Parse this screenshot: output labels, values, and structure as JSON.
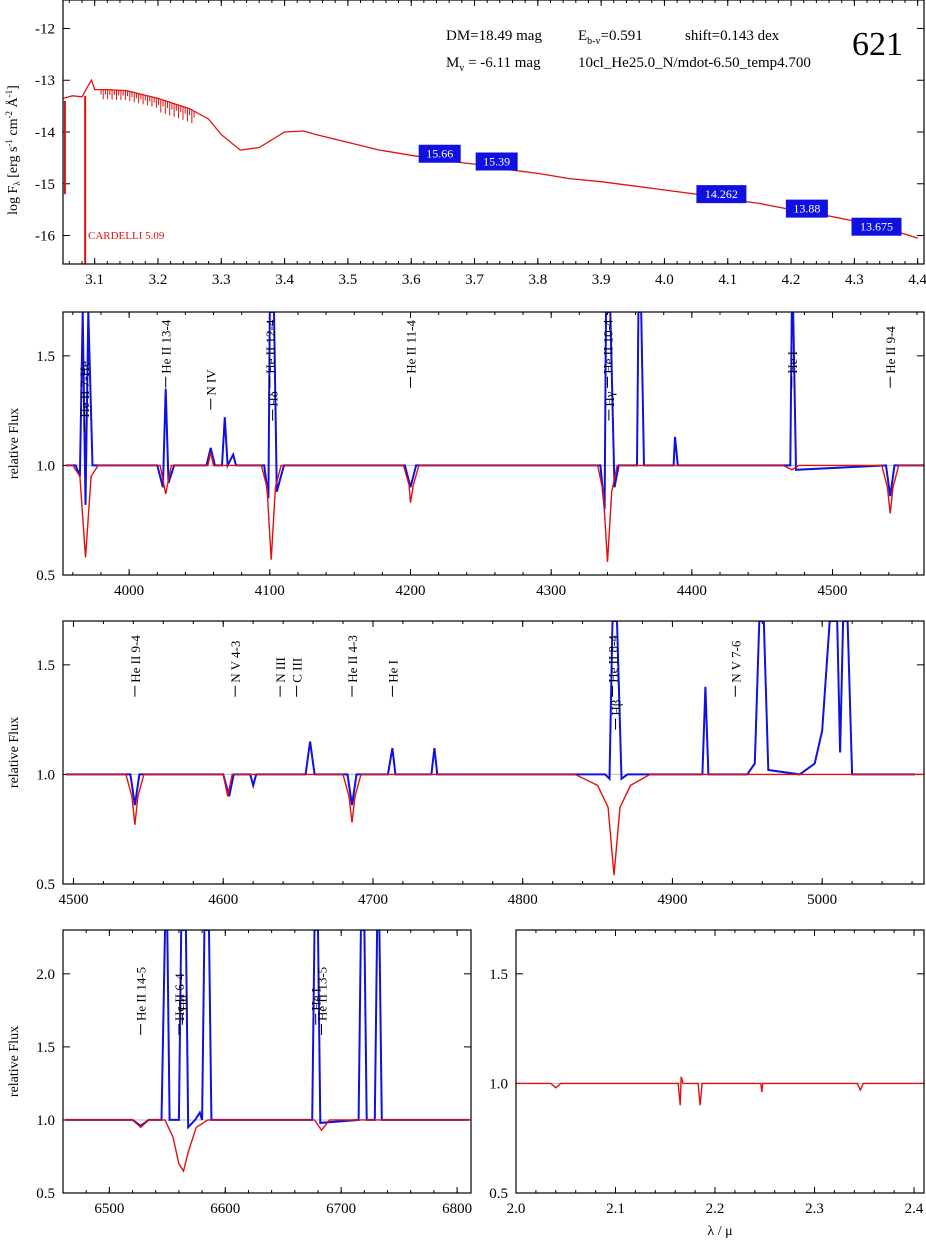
{
  "header": {
    "dm": "DM=18.49 mag",
    "ebv_prefix": "E",
    "ebv_sub": "b-v",
    "ebv_value": "=0.591",
    "shift": "shift=0.143 dex",
    "mv_prefix": "M",
    "mv_sub": "v",
    "mv_value": " =  -6.11 mag",
    "model": "10cl_He25.0_N/mdot-6.50_temp4.700",
    "id": "621",
    "cardelli": "CARDELLI 5.09"
  },
  "colors": {
    "observed": "#1010e0",
    "model": "#e01010",
    "badge": "#1010e0"
  },
  "chart_data": [
    {
      "type": "line",
      "panel": "sed",
      "ylabel": "log Fλ [erg s-1 cm-2 Å-1]",
      "xlim": [
        3.05,
        4.41
      ],
      "ylim": [
        -16.55,
        -11.45
      ],
      "xticks": [
        "3.1",
        "3.2",
        "3.3",
        "3.4",
        "3.5",
        "3.6",
        "3.7",
        "3.8",
        "3.9",
        "4.0",
        "4.1",
        "4.2",
        "4.3",
        "4.4"
      ],
      "yticks": [
        "-12",
        "-13",
        "-14",
        "-15",
        "-16"
      ],
      "series": [
        {
          "x": [
            3.05,
            3.065,
            3.08,
            3.09,
            3.095,
            3.1,
            3.12,
            3.15,
            3.2,
            3.25,
            3.28,
            3.3,
            3.33,
            3.36,
            3.4,
            3.43,
            3.45,
            3.5,
            3.55,
            3.6,
            3.65,
            3.7,
            3.75,
            3.8,
            3.85,
            3.9,
            3.95,
            4.0,
            4.05,
            4.1,
            4.15,
            4.2,
            4.25,
            4.3,
            4.35,
            4.4
          ],
          "y": [
            -13.35,
            -13.3,
            -13.32,
            -13.1,
            -13.0,
            -13.18,
            -13.18,
            -13.2,
            -13.35,
            -13.55,
            -13.75,
            -14.05,
            -14.35,
            -14.3,
            -14.0,
            -13.98,
            -14.05,
            -14.2,
            -14.35,
            -14.45,
            -14.55,
            -14.62,
            -14.72,
            -14.8,
            -14.9,
            -14.96,
            -15.04,
            -15.12,
            -15.2,
            -15.3,
            -15.38,
            -15.5,
            -15.6,
            -15.72,
            -15.86,
            -16.05
          ]
        }
      ],
      "magnitudes": [
        {
          "x": 3.645,
          "y": -14.42,
          "label": "15.66"
        },
        {
          "x": 3.735,
          "y": -14.57,
          "label": "15.39"
        },
        {
          "x": 4.09,
          "y": -15.2,
          "label": "14.262"
        },
        {
          "x": 4.225,
          "y": -15.48,
          "label": "13.88"
        },
        {
          "x": 4.335,
          "y": -15.83,
          "label": "13.675"
        }
      ]
    },
    {
      "type": "line",
      "panel": "blue",
      "ylabel": "relative Flux",
      "xlim": [
        3953,
        4565
      ],
      "ylim": [
        0.5,
        1.7
      ],
      "xticks": [
        "4000",
        "4100",
        "4200",
        "4300",
        "4400",
        "4500"
      ],
      "yticks": [
        "1.5",
        "1.0",
        "0.5"
      ],
      "lines": [
        {
          "x": 3968,
          "label": "He II 7-He",
          "y": 1.2
        },
        {
          "x": 4026,
          "label": "He II 13-4",
          "y": 1.4
        },
        {
          "x": 4058,
          "label": "N IV",
          "y": 1.3
        },
        {
          "x": 4100,
          "label": "He II 12-4",
          "y": 1.4
        },
        {
          "x": 4102,
          "label": "Hδ",
          "y": 1.25
        },
        {
          "x": 4200,
          "label": "He II 11-4",
          "y": 1.4
        },
        {
          "x": 4340,
          "label": "He II 10-4",
          "y": 1.4
        },
        {
          "x": 4341,
          "label": "Hγ",
          "y": 1.25
        },
        {
          "x": 4471,
          "label": "He I",
          "y": 1.4
        },
        {
          "x": 4541,
          "label": "He II 9-4",
          "y": 1.4
        }
      ],
      "observed": [
        [
          3955,
          1.0
        ],
        [
          3962,
          1.0
        ],
        [
          3965,
          0.95
        ],
        [
          3967,
          1.7
        ],
        [
          3969,
          0.82
        ],
        [
          3971,
          1.7
        ],
        [
          3974,
          1.0
        ],
        [
          4020,
          1.0
        ],
        [
          4024,
          0.9
        ],
        [
          4026,
          1.35
        ],
        [
          4028,
          0.92
        ],
        [
          4032,
          1.0
        ],
        [
          4055,
          1.0
        ],
        [
          4058,
          1.08
        ],
        [
          4061,
          1.0
        ],
        [
          4066,
          1.0
        ],
        [
          4068,
          1.22
        ],
        [
          4070,
          1.0
        ],
        [
          4074,
          1.05
        ],
        [
          4076,
          1.0
        ],
        [
          4096,
          1.0
        ],
        [
          4099,
          0.85
        ],
        [
          4100,
          1.7
        ],
        [
          4103,
          1.7
        ],
        [
          4105,
          0.88
        ],
        [
          4110,
          1.0
        ],
        [
          4196,
          1.0
        ],
        [
          4200,
          0.9
        ],
        [
          4204,
          1.0
        ],
        [
          4335,
          1.0
        ],
        [
          4338,
          0.8
        ],
        [
          4339,
          1.7
        ],
        [
          4342,
          1.7
        ],
        [
          4345,
          0.9
        ],
        [
          4348,
          1.0
        ],
        [
          4361,
          1.0
        ],
        [
          4362,
          1.7
        ],
        [
          4364,
          1.7
        ],
        [
          4366,
          1.0
        ],
        [
          4387,
          1.0
        ],
        [
          4388,
          1.13
        ],
        [
          4390,
          1.0
        ],
        [
          4460,
          1.0
        ],
        [
          4470,
          1.0
        ],
        [
          4471,
          1.7
        ],
        [
          4472,
          1.7
        ],
        [
          4474,
          0.98
        ],
        [
          4538,
          1.0
        ],
        [
          4541,
          0.86
        ],
        [
          4544,
          1.0
        ],
        [
          4565,
          1.0
        ]
      ],
      "model": [
        [
          3955,
          1.0
        ],
        [
          3960,
          1.0
        ],
        [
          3965,
          0.95
        ],
        [
          3969,
          0.58
        ],
        [
          3973,
          0.95
        ],
        [
          3978,
          1.0
        ],
        [
          4022,
          1.0
        ],
        [
          4026,
          0.87
        ],
        [
          4030,
          1.0
        ],
        [
          4056,
          1.0
        ],
        [
          4058,
          1.06
        ],
        [
          4060,
          1.0
        ],
        [
          4094,
          1.0
        ],
        [
          4098,
          0.9
        ],
        [
          4101,
          0.57
        ],
        [
          4104,
          0.9
        ],
        [
          4108,
          1.0
        ],
        [
          4195,
          1.0
        ],
        [
          4199,
          0.91
        ],
        [
          4200,
          0.83
        ],
        [
          4202,
          0.91
        ],
        [
          4206,
          1.0
        ],
        [
          4333,
          1.0
        ],
        [
          4337,
          0.88
        ],
        [
          4340,
          0.56
        ],
        [
          4343,
          0.88
        ],
        [
          4347,
          1.0
        ],
        [
          4465,
          1.0
        ],
        [
          4471,
          0.98
        ],
        [
          4476,
          1.0
        ],
        [
          4535,
          1.0
        ],
        [
          4539,
          0.9
        ],
        [
          4541,
          0.78
        ],
        [
          4543,
          0.9
        ],
        [
          4547,
          1.0
        ],
        [
          4565,
          1.0
        ]
      ]
    },
    {
      "type": "line",
      "panel": "green",
      "ylabel": "relative Flux",
      "xlim": [
        4493,
        5068
      ],
      "ylim": [
        0.5,
        1.7
      ],
      "xticks": [
        "4500",
        "4600",
        "4700",
        "4800",
        "4900",
        "5000"
      ],
      "yticks": [
        "1.5",
        "1.0",
        "0.5"
      ],
      "lines": [
        {
          "x": 4541,
          "label": "He II 9-4",
          "y": 1.4
        },
        {
          "x": 4608,
          "label": "N V 4-3",
          "y": 1.4
        },
        {
          "x": 4638,
          "label": "N III",
          "y": 1.4
        },
        {
          "x": 4649,
          "label": "C III",
          "y": 1.4
        },
        {
          "x": 4686,
          "label": "He II 4-3",
          "y": 1.4
        },
        {
          "x": 4713,
          "label": "He I",
          "y": 1.4
        },
        {
          "x": 4860,
          "label": "He II 8-4",
          "y": 1.4
        },
        {
          "x": 4862,
          "label": "Hβ",
          "y": 1.25
        },
        {
          "x": 4942,
          "label": "N V 7-6",
          "y": 1.4
        }
      ],
      "observed": [
        [
          4495,
          1.0
        ],
        [
          4538,
          1.0
        ],
        [
          4541,
          0.86
        ],
        [
          4544,
          1.0
        ],
        [
          4600,
          1.0
        ],
        [
          4604,
          0.9
        ],
        [
          4607,
          1.0
        ],
        [
          4618,
          1.0
        ],
        [
          4620,
          0.95
        ],
        [
          4622,
          1.0
        ],
        [
          4655,
          1.0
        ],
        [
          4658,
          1.15
        ],
        [
          4661,
          1.0
        ],
        [
          4683,
          1.0
        ],
        [
          4686,
          0.86
        ],
        [
          4689,
          1.0
        ],
        [
          4710,
          1.0
        ],
        [
          4713,
          1.12
        ],
        [
          4715,
          1.0
        ],
        [
          4739,
          1.0
        ],
        [
          4741,
          1.12
        ],
        [
          4743,
          1.0
        ],
        [
          4855,
          1.0
        ],
        [
          4858,
          0.98
        ],
        [
          4860,
          1.7
        ],
        [
          4863,
          1.7
        ],
        [
          4866,
          0.98
        ],
        [
          4870,
          1.0
        ],
        [
          4920,
          1.0
        ],
        [
          4922,
          1.4
        ],
        [
          4924,
          1.0
        ],
        [
          4950,
          1.0
        ],
        [
          4955,
          1.05
        ],
        [
          4958,
          1.7
        ],
        [
          4961,
          1.7
        ],
        [
          4964,
          1.02
        ],
        [
          4985,
          1.0
        ],
        [
          4995,
          1.05
        ],
        [
          5000,
          1.2
        ],
        [
          5005,
          1.7
        ],
        [
          5010,
          1.7
        ],
        [
          5012,
          1.1
        ],
        [
          5014,
          1.7
        ],
        [
          5017,
          1.7
        ],
        [
          5020,
          1.0
        ],
        [
          5062,
          1.0
        ]
      ],
      "model": [
        [
          4495,
          1.0
        ],
        [
          4535,
          1.0
        ],
        [
          4539,
          0.9
        ],
        [
          4541,
          0.77
        ],
        [
          4543,
          0.9
        ],
        [
          4547,
          1.0
        ],
        [
          4600,
          1.0
        ],
        [
          4603,
          0.9
        ],
        [
          4606,
          1.0
        ],
        [
          4680,
          1.0
        ],
        [
          4684,
          0.9
        ],
        [
          4686,
          0.78
        ],
        [
          4688,
          0.9
        ],
        [
          4692,
          1.0
        ],
        [
          4835,
          1.0
        ],
        [
          4850,
          0.95
        ],
        [
          4857,
          0.85
        ],
        [
          4861,
          0.54
        ],
        [
          4865,
          0.85
        ],
        [
          4872,
          0.95
        ],
        [
          4885,
          1.0
        ],
        [
          5068,
          1.0
        ]
      ]
    },
    {
      "type": "line",
      "panel": "red",
      "ylabel": "relative Flux",
      "xlim": [
        6460,
        6812
      ],
      "ylim": [
        0.5,
        2.3
      ],
      "xticks": [
        "6500",
        "6600",
        "6700",
        "6800"
      ],
      "yticks": [
        "2.0",
        "1.5",
        "1.0",
        "0.5"
      ],
      "lines": [
        {
          "x": 6527,
          "label": "He II 14-5",
          "y": 1.65
        },
        {
          "x": 6560,
          "label": "He II 6-4",
          "y": 1.65
        },
        {
          "x": 6563,
          "label": "Hα",
          "y": 1.72
        },
        {
          "x": 6678,
          "label": "He I",
          "y": 1.72
        },
        {
          "x": 6683,
          "label": "He II 13-5",
          "y": 1.65
        }
      ],
      "observed": [
        [
          6462,
          1.0
        ],
        [
          6520,
          1.0
        ],
        [
          6527,
          0.96
        ],
        [
          6534,
          1.0
        ],
        [
          6545,
          1.0
        ],
        [
          6548,
          2.3
        ],
        [
          6550,
          2.3
        ],
        [
          6552,
          1.0
        ],
        [
          6560,
          1.0
        ],
        [
          6562,
          2.3
        ],
        [
          6566,
          2.3
        ],
        [
          6568,
          0.95
        ],
        [
          6574,
          1.0
        ],
        [
          6578,
          1.05
        ],
        [
          6580,
          1.0
        ],
        [
          6582,
          2.3
        ],
        [
          6586,
          2.3
        ],
        [
          6588,
          1.0
        ],
        [
          6675,
          1.0
        ],
        [
          6677,
          2.3
        ],
        [
          6680,
          2.3
        ],
        [
          6682,
          0.98
        ],
        [
          6715,
          1.0
        ],
        [
          6717,
          2.3
        ],
        [
          6720,
          2.3
        ],
        [
          6722,
          1.0
        ],
        [
          6729,
          1.0
        ],
        [
          6731,
          2.3
        ],
        [
          6733,
          2.3
        ],
        [
          6735,
          1.0
        ],
        [
          6810,
          1.0
        ]
      ],
      "model": [
        [
          6462,
          1.0
        ],
        [
          6520,
          1.0
        ],
        [
          6527,
          0.95
        ],
        [
          6534,
          1.0
        ],
        [
          6548,
          1.0
        ],
        [
          6555,
          0.88
        ],
        [
          6560,
          0.7
        ],
        [
          6564,
          0.65
        ],
        [
          6568,
          0.78
        ],
        [
          6575,
          0.95
        ],
        [
          6585,
          1.0
        ],
        [
          6677,
          1.0
        ],
        [
          6683,
          0.93
        ],
        [
          6690,
          1.0
        ],
        [
          6810,
          1.0
        ]
      ]
    },
    {
      "type": "line",
      "panel": "ir",
      "xlabel": "λ / μ",
      "xlim": [
        2.0,
        2.41
      ],
      "ylim": [
        0.5,
        1.7
      ],
      "xticks": [
        "2.0",
        "2.1",
        "2.2",
        "2.3",
        "2.4"
      ],
      "yticks": [
        "1.5",
        "1.0",
        "0.5"
      ],
      "model": [
        [
          2.0,
          1.0
        ],
        [
          2.035,
          1.0
        ],
        [
          2.04,
          0.98
        ],
        [
          2.045,
          1.0
        ],
        [
          2.163,
          1.0
        ],
        [
          2.165,
          0.9
        ],
        [
          2.166,
          1.03
        ],
        [
          2.168,
          1.0
        ],
        [
          2.183,
          1.0
        ],
        [
          2.185,
          0.9
        ],
        [
          2.187,
          1.0
        ],
        [
          2.246,
          1.0
        ],
        [
          2.247,
          0.96
        ],
        [
          2.248,
          1.0
        ],
        [
          2.343,
          1.0
        ],
        [
          2.346,
          0.97
        ],
        [
          2.349,
          1.0
        ],
        [
          2.41,
          1.0
        ]
      ]
    }
  ]
}
